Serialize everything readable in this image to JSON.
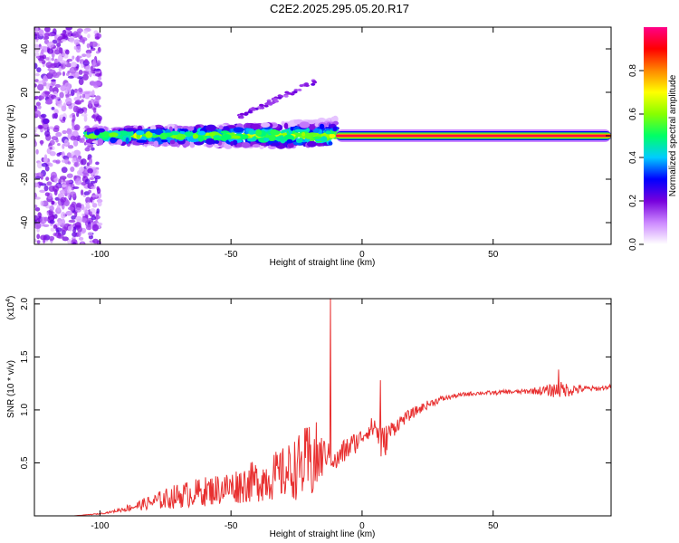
{
  "chart_data": [
    {
      "type": "heatmap",
      "title": "C2E2.2025.295.05.20.R17",
      "xlabel": "Height of straight line (km)",
      "ylabel": "Frequency (Hz)",
      "xlim": [
        -125,
        95
      ],
      "ylim": [
        -50,
        50
      ],
      "xticks": [
        -100,
        -50,
        0,
        50
      ],
      "xtick_labels": [
        "-100",
        "-50",
        "0",
        "50"
      ],
      "yticks": [
        -40,
        -20,
        0,
        20,
        40
      ],
      "ytick_labels": [
        "-40",
        "-20",
        "0",
        "20",
        "40"
      ],
      "colorbar": {
        "label": "Normalized spectral amplitude",
        "range": [
          0.0,
          1.0
        ],
        "ticks": [
          0.0,
          0.2,
          0.4,
          0.6,
          0.8
        ],
        "tick_labels": [
          "0.0",
          "0.2",
          "0.4",
          "0.6",
          "0.8"
        ],
        "colors": [
          "#ffffff",
          "#cc88ff",
          "#7700dd",
          "#0000ff",
          "#00ccff",
          "#00ff66",
          "#88ff00",
          "#ffff00",
          "#ff8800",
          "#ff0000",
          "#ff0088"
        ]
      },
      "features": {
        "noise_region_x": [
          -125,
          -100
        ],
        "signal_band_start_x": -105,
        "branch_rising": {
          "x": [
            -50,
            -18
          ],
          "y": [
            7,
            25
          ]
        },
        "strong_line_start_x": -10,
        "strong_line_end_x": 95,
        "strong_line_freq": 0
      }
    },
    {
      "type": "line",
      "xlabel": "Height of straight line (km)",
      "ylabel": "SNR (10 * v/v)",
      "y_multiplier_label": "(x10",
      "y_multiplier_exp": "4",
      "y_multiplier_close": ")",
      "xlim": [
        -125,
        95
      ],
      "ylim": [
        0,
        2.05
      ],
      "xticks": [
        -100,
        -50,
        0,
        50
      ],
      "xtick_labels": [
        "-100",
        "-50",
        "0",
        "50"
      ],
      "yticks": [
        0.5,
        1.0,
        1.5,
        2.0
      ],
      "ytick_labels": [
        "0.5",
        "1.0",
        "1.5",
        "2.0"
      ],
      "color": "#e83030",
      "series": [
        {
          "name": "SNR",
          "x": [
            -125,
            -110,
            -100,
            -95,
            -90,
            -85,
            -80,
            -75,
            -70,
            -65,
            -60,
            -55,
            -50,
            -45,
            -40,
            -35,
            -30,
            -25,
            -22,
            -20,
            -18,
            -15,
            -13,
            -12,
            -10,
            -8,
            -5,
            -2,
            0,
            2,
            5,
            8,
            10,
            15,
            20,
            25,
            30,
            35,
            40,
            45,
            50,
            55,
            60,
            65,
            70,
            75,
            80,
            85,
            90,
            95
          ],
          "baseline": [
            0.0,
            0.0,
            0.02,
            0.04,
            0.07,
            0.1,
            0.13,
            0.16,
            0.19,
            0.21,
            0.23,
            0.25,
            0.27,
            0.3,
            0.33,
            0.36,
            0.4,
            0.45,
            0.48,
            0.5,
            0.52,
            0.56,
            0.6,
            0.55,
            0.5,
            0.58,
            0.65,
            0.7,
            0.75,
            0.8,
            0.85,
            0.65,
            0.78,
            0.9,
            0.98,
            1.05,
            1.1,
            1.13,
            1.15,
            1.16,
            1.16,
            1.17,
            1.17,
            1.18,
            1.18,
            1.19,
            1.19,
            1.2,
            1.2,
            1.22
          ],
          "noise": [
            0.0,
            0.0,
            0.005,
            0.01,
            0.03,
            0.05,
            0.07,
            0.1,
            0.12,
            0.13,
            0.14,
            0.15,
            0.16,
            0.18,
            0.2,
            0.22,
            0.25,
            0.3,
            0.35,
            0.38,
            0.4,
            0.2,
            0.1,
            0.08,
            0.1,
            0.12,
            0.12,
            0.1,
            0.08,
            0.08,
            0.12,
            0.2,
            0.1,
            0.06,
            0.05,
            0.04,
            0.03,
            0.02,
            0.02,
            0.02,
            0.02,
            0.02,
            0.02,
            0.03,
            0.05,
            0.08,
            0.06,
            0.03,
            0.02,
            0.02
          ]
        }
      ],
      "spikes": [
        {
          "x": -12,
          "y": 2.05
        },
        {
          "x": 7,
          "y": 1.28
        },
        {
          "x": 75,
          "y": 1.38
        }
      ]
    }
  ]
}
